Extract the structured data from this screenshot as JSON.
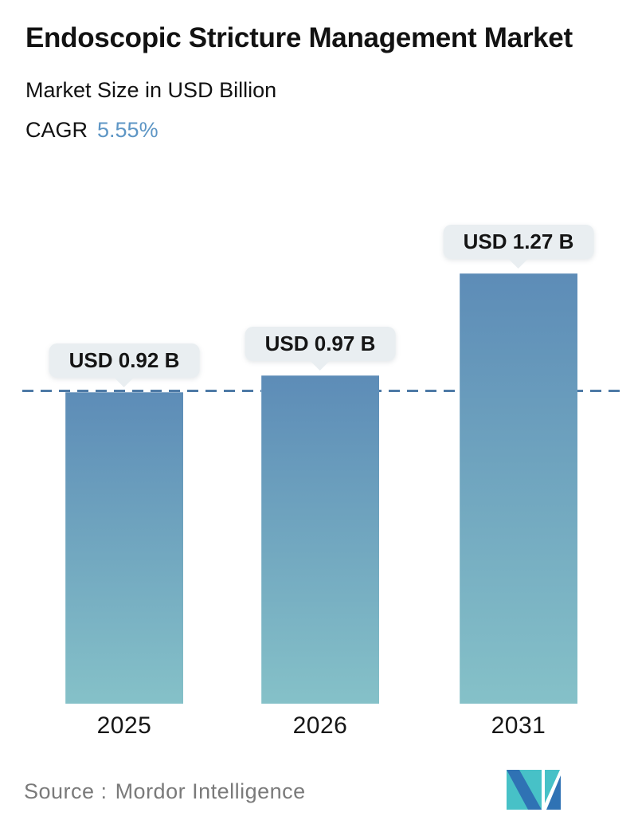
{
  "header": {
    "title": "Endoscopic Stricture Management Market",
    "subtitle": "Market Size in USD Billion",
    "cagr_label": "CAGR",
    "cagr_value": "5.55%"
  },
  "chart_data": {
    "type": "bar",
    "categories": [
      "2025",
      "2026",
      "2031"
    ],
    "values": [
      0.92,
      0.97,
      1.27
    ],
    "value_labels": [
      "USD 0.92 B",
      "USD 0.97 B",
      "USD 1.27 B"
    ],
    "title": "Endoscopic Stricture Management Market",
    "subtitle": "Market Size in USD Billion",
    "unit": "USD Billion",
    "ylim": [
      0,
      1.4
    ],
    "grid": "off",
    "legend": "none",
    "reference_line": {
      "style": "dashed",
      "value": 0.92
    },
    "bar_gradient": {
      "top": "#5D8CB7",
      "bottom": "#85C1C8"
    }
  },
  "footer": {
    "source_label": "Source :",
    "source_name": "Mordor Intelligence",
    "logo_name": "mordor-intelligence-logo"
  },
  "colors": {
    "accent_blue": "#5E96C5",
    "dashed_line": "#4E7AA6",
    "callout_bg": "#E9EEF1",
    "text_dark": "#121212",
    "text_gray": "#7A7A7A",
    "logo_teal": "#47C1C7",
    "logo_blue": "#2F72B4"
  }
}
